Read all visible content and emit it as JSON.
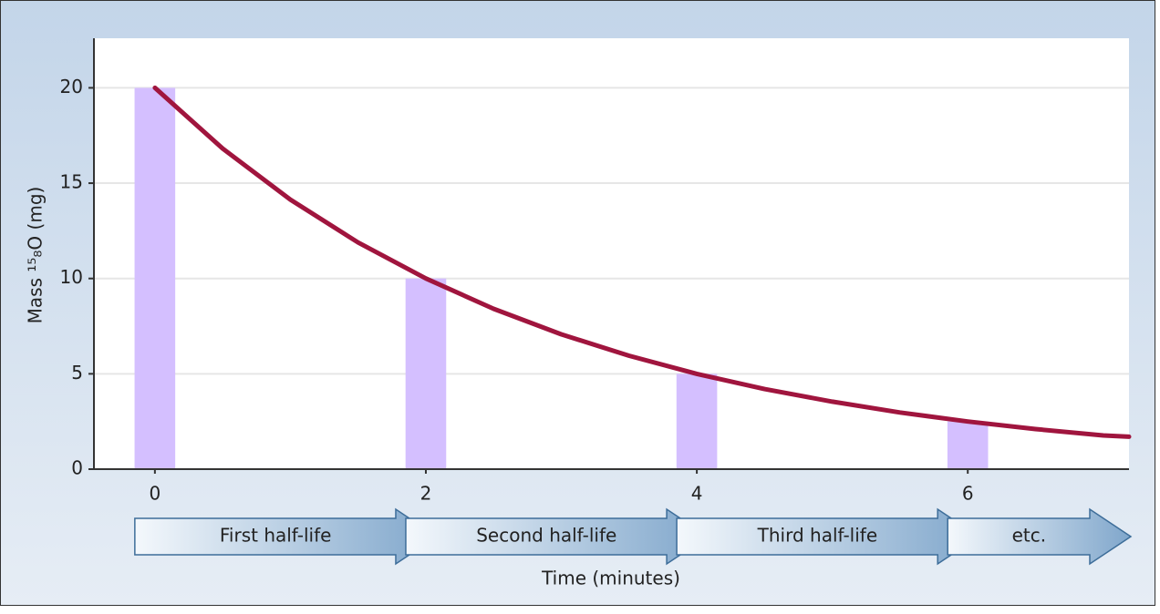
{
  "chart_data": {
    "type": "bar",
    "y_label": "Mass ¹⁵₈O (mg)",
    "x_label": "Time (minutes)",
    "xlim": [
      -0.45,
      7.19
    ],
    "xticks": [
      0,
      2,
      4,
      6
    ],
    "ylim": [
      0,
      22.6
    ],
    "yticks": [
      0,
      5,
      10,
      15,
      20
    ],
    "grid": true,
    "series": [
      {
        "type": "bar",
        "color": "#d4bfff",
        "x": [
          0,
          2,
          4,
          6
        ],
        "values": [
          20,
          10,
          5,
          2.5
        ]
      },
      {
        "type": "line",
        "color": "#a0153e",
        "x": [
          0,
          0.5,
          1,
          1.5,
          2,
          2.5,
          3,
          3.5,
          4,
          4.5,
          5,
          5.5,
          6,
          6.5,
          7,
          7.19
        ],
        "values": [
          20,
          16.82,
          14.14,
          11.89,
          10,
          8.41,
          7.07,
          5.95,
          5,
          4.2,
          3.54,
          2.97,
          2.5,
          2.1,
          1.77,
          1.7
        ]
      }
    ],
    "phases": [
      "First half-life",
      "Second half-life",
      "Third half-life",
      "etc."
    ]
  }
}
